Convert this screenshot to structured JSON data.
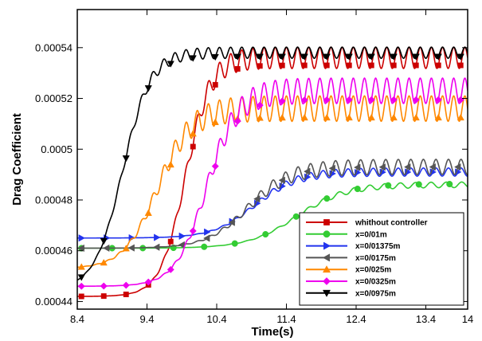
{
  "chart_data": {
    "type": "line",
    "xlabel": "Time(s)",
    "ylabel": "Drag Coefficient",
    "xlim": [
      8.4,
      14
    ],
    "ylim": [
      0.000437,
      0.000555
    ],
    "xticks": [
      "8.4",
      "9.4",
      "10.4",
      "11.4",
      "12.4",
      "13.4",
      "14"
    ],
    "xtick_values": [
      8.4,
      9.4,
      10.4,
      11.4,
      12.4,
      13.4,
      14
    ],
    "yticks": [
      "0.00044",
      "0.00046",
      "0.00048",
      "0.0005",
      "0.00052",
      "0.00054"
    ],
    "ytick_values": [
      0.00044,
      0.00046,
      0.00048,
      0.0005,
      0.00052,
      0.00054
    ],
    "grid": false,
    "legend_position": "bottom-right",
    "series": [
      {
        "name": "whithout controller",
        "color": "#cc0000",
        "marker": "square",
        "base": 0.000442,
        "plateau": 0.000536,
        "t_mid": 9.95,
        "rise_width": 0.18,
        "osc_amp": 4.2e-06,
        "osc_period": 0.16
      },
      {
        "name": "x=0/01m",
        "color": "#33cc33",
        "marker": "circle",
        "base": 0.000461,
        "plateau": 0.000486,
        "t_mid": 11.55,
        "rise_width": 0.35,
        "osc_amp": 1.1e-06,
        "osc_period": 0.22
      },
      {
        "name": "x=0/01375m",
        "color": "#2233ee",
        "marker": "triangle-right",
        "base": 0.000465,
        "plateau": 0.000491,
        "t_mid": 10.95,
        "rise_width": 0.3,
        "osc_amp": 1.6e-06,
        "osc_period": 0.18
      },
      {
        "name": "x=0/0175m",
        "color": "#555555",
        "marker": "triangle-left",
        "base": 0.000461,
        "plateau": 0.000493,
        "t_mid": 10.85,
        "rise_width": 0.3,
        "osc_amp": 3e-06,
        "osc_period": 0.18
      },
      {
        "name": "x=0/025m",
        "color": "#ff8800",
        "marker": "triangle-up",
        "base": 0.000453,
        "plateau": 0.000516,
        "t_mid": 9.55,
        "rise_width": 0.24,
        "osc_amp": 5e-06,
        "osc_period": 0.16
      },
      {
        "name": "x=0/0325m",
        "color": "#ee00ee",
        "marker": "diamond",
        "base": 0.000446,
        "plateau": 0.000523,
        "t_mid": 10.25,
        "rise_width": 0.22,
        "osc_amp": 5e-06,
        "osc_period": 0.16
      },
      {
        "name": "x=0/0975m",
        "color": "#000000",
        "marker": "triangle-down",
        "base": 0.000445,
        "plateau": 0.000538,
        "t_mid": 9.05,
        "rise_width": 0.2,
        "osc_amp": 2.2e-06,
        "osc_period": 0.16
      }
    ]
  }
}
